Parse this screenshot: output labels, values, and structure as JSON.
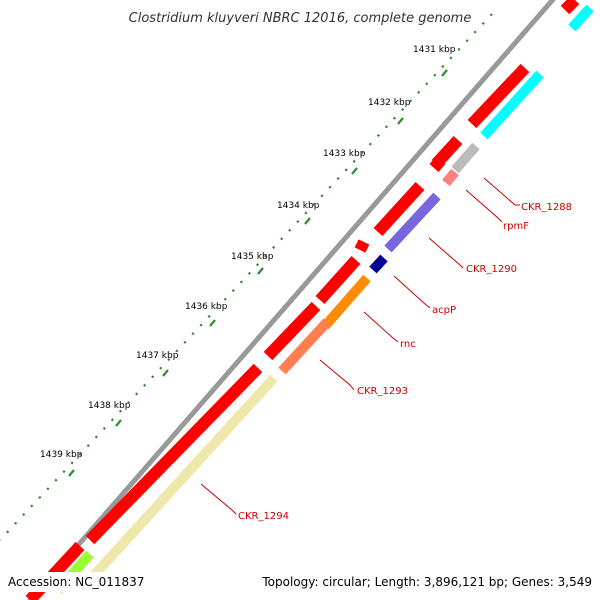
{
  "title": "Clostridium kluyveri NBRC 12016, complete genome",
  "accession": "Accession: NC_011837",
  "summary": "Topology: circular; Length: 3,896,121 bp; Genes: 3,549",
  "ticks": [
    "1431 kbp",
    "1432 kbp",
    "1433 kbp",
    "1434 kbp",
    "1435 kbp",
    "1436 kbp",
    "1437 kbp",
    "1438 kbp",
    "1439 kbp"
  ],
  "gene_labels": [
    "CKR_1288",
    "rpmF",
    "CKR_1290",
    "acpP",
    "rnc",
    "CKR_1293",
    "CKR_1294"
  ],
  "colors": {
    "backbone": "#999999",
    "cds": "#ff0000",
    "tick_green": "#2e8b2e",
    "label_red": "#cc0000",
    "features": [
      "#00ffff",
      "#bbbbbb",
      "#ff7f7f",
      "#7766dd",
      "#000099",
      "#ff8c00",
      "#ff7f50",
      "#eee8aa",
      "#99ff33"
    ]
  }
}
